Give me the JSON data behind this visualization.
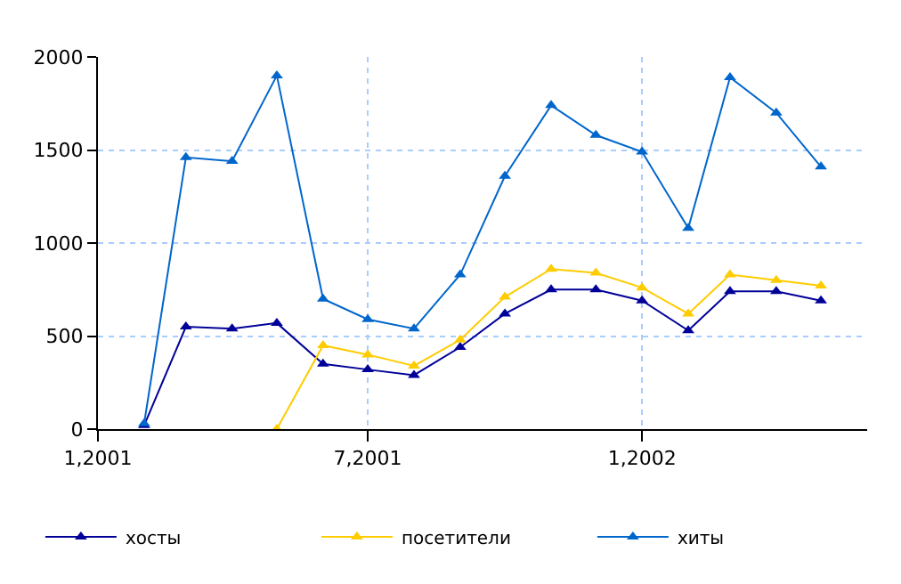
{
  "chart_data": {
    "type": "line",
    "x": [
      "2001-02",
      "2001-03",
      "2001-04",
      "2001-05",
      "2001-06",
      "2001-07",
      "2001-08",
      "2001-09",
      "2001-10",
      "2001-11",
      "2001-12",
      "2002-01",
      "2002-02",
      "2002-03",
      "2002-04",
      "2002-05"
    ],
    "series": [
      {
        "name": "хосты",
        "color": "#000099",
        "values": [
          20,
          550,
          540,
          570,
          350,
          320,
          290,
          440,
          620,
          750,
          750,
          690,
          530,
          740,
          740,
          690
        ]
      },
      {
        "name": "посетители",
        "color": "#ffcc00",
        "values": [
          null,
          null,
          null,
          0,
          450,
          400,
          340,
          480,
          710,
          860,
          840,
          760,
          620,
          830,
          800,
          770
        ]
      },
      {
        "name": "хиты",
        "color": "#0066cc",
        "values": [
          30,
          1460,
          1440,
          1900,
          700,
          590,
          540,
          830,
          1360,
          1740,
          1580,
          1490,
          1080,
          1890,
          1700,
          1410
        ]
      }
    ],
    "xlim": [
      "2001-01",
      "2002-06"
    ],
    "xticks": [
      {
        "value": "2001-01",
        "label": "1,2001"
      },
      {
        "value": "2001-07",
        "label": "7,2001"
      },
      {
        "value": "2002-01",
        "label": "1,2002"
      }
    ],
    "ylim": [
      0,
      2000
    ],
    "yticks": [
      0,
      500,
      1000,
      1500,
      2000
    ],
    "grid": true,
    "legend": "bottom",
    "marker": "triangle",
    "line_style": "solid"
  }
}
